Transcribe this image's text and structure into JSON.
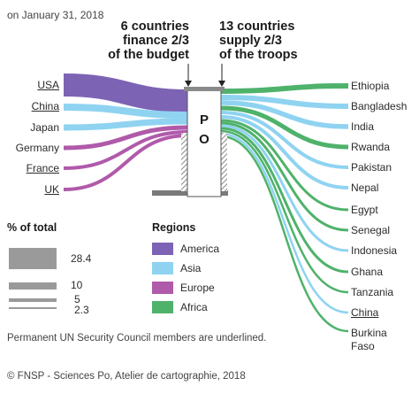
{
  "date": "on January 31, 2018",
  "heading_left": [
    "6 countries",
    "finance 2/3",
    "of the budget"
  ],
  "heading_right": [
    "13 countries",
    "supply 2/3",
    "of the troops"
  ],
  "center_label": [
    "P",
    "O"
  ],
  "funders": [
    {
      "name": "USA",
      "underlined": true,
      "region": "america"
    },
    {
      "name": "China",
      "underlined": true,
      "region": "asia"
    },
    {
      "name": "Japan",
      "underlined": false,
      "region": "asia"
    },
    {
      "name": "Germany",
      "underlined": false,
      "region": "europe"
    },
    {
      "name": "France",
      "underlined": true,
      "region": "europe"
    },
    {
      "name": "UK",
      "underlined": true,
      "region": "europe"
    }
  ],
  "contributors": [
    {
      "name": "Ethiopia",
      "underlined": false,
      "region": "africa"
    },
    {
      "name": "Bangladesh",
      "underlined": false,
      "region": "asia"
    },
    {
      "name": "India",
      "underlined": false,
      "region": "asia"
    },
    {
      "name": "Rwanda",
      "underlined": false,
      "region": "africa"
    },
    {
      "name": "Pakistan",
      "underlined": false,
      "region": "asia"
    },
    {
      "name": "Nepal",
      "underlined": false,
      "region": "asia"
    },
    {
      "name": "Egypt",
      "underlined": false,
      "region": "africa"
    },
    {
      "name": "Senegal",
      "underlined": false,
      "region": "africa"
    },
    {
      "name": "Indonesia",
      "underlined": false,
      "region": "asia"
    },
    {
      "name": "Ghana",
      "underlined": false,
      "region": "africa"
    },
    {
      "name": "Tanzania",
      "underlined": false,
      "region": "africa"
    },
    {
      "name": "China",
      "underlined": true,
      "region": "asia"
    },
    {
      "name": "Burkina Faso",
      "underlined": false,
      "region": "africa"
    }
  ],
  "size_legend": {
    "title": "% of total",
    "values": [
      "28.4",
      "10",
      "5",
      "2.3"
    ]
  },
  "regions_legend": {
    "title": "Regions",
    "items": [
      {
        "key": "america",
        "label": "America",
        "color": "#7d63b4"
      },
      {
        "key": "asia",
        "label": "Asia",
        "color": "#8fd3f1"
      },
      {
        "key": "europe",
        "label": "Europe",
        "color": "#b05aaa"
      },
      {
        "key": "africa",
        "label": "Africa",
        "color": "#4fb26b"
      }
    ]
  },
  "note": "Permanent UN Security Council members are underlined.",
  "credit": "© FNSP - Sciences Po, Atelier de cartographie, 2018"
}
